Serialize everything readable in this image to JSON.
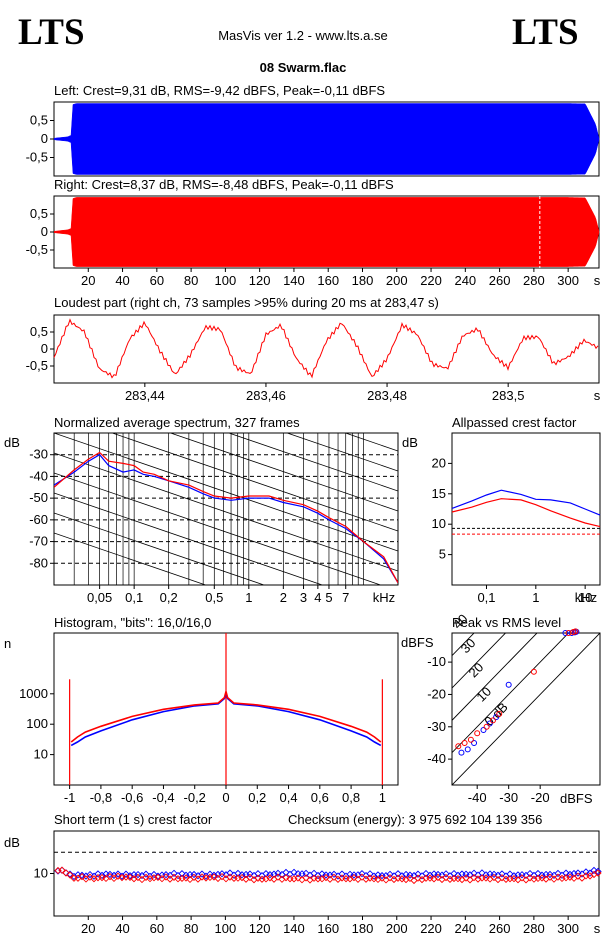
{
  "header": {
    "logo_left": "LTS",
    "logo_right": "LTS",
    "app_title": "MasVis ver 1.2 - www.lts.a.se",
    "file_name": "08 Swarm.flac"
  },
  "colors": {
    "left": "#0000ff",
    "right": "#ff0000",
    "axis": "#000000",
    "background": "#ffffff"
  },
  "chart_data": [
    {
      "id": "left-waveform",
      "type": "area",
      "title": "Left: Crest=9,31 dB, RMS=-9,42 dBFS, Peak=-0,11 dBFS",
      "y_ticks": [
        "0,5",
        "0",
        "-0,5"
      ],
      "ylim": [
        -1,
        1
      ],
      "xlim": [
        0,
        318
      ],
      "envelope_x": [
        0,
        8,
        10,
        11,
        13,
        300,
        310,
        316,
        318
      ],
      "envelope_y": [
        0.02,
        0.06,
        0.1,
        0.93,
        0.96,
        0.96,
        0.95,
        0.4,
        0.02
      ]
    },
    {
      "id": "right-waveform",
      "type": "area",
      "title": "Right: Crest=8,37 dB, RMS=-8,48 dBFS, Peak=-0,11 dBFS",
      "y_ticks": [
        "0,5",
        "0",
        "-0,5"
      ],
      "ylim": [
        -1,
        1
      ],
      "xlim": [
        0,
        318
      ],
      "marker_x": 283.47,
      "x_ticks": [
        "20",
        "40",
        "60",
        "80",
        "100",
        "120",
        "140",
        "160",
        "180",
        "200",
        "220",
        "240",
        "260",
        "280",
        "300",
        "s"
      ],
      "x_tick_values": [
        20,
        40,
        60,
        80,
        100,
        120,
        140,
        160,
        180,
        200,
        220,
        240,
        260,
        280,
        300
      ],
      "envelope_x": [
        0,
        8,
        10,
        11,
        13,
        300,
        310,
        316,
        318
      ],
      "envelope_y": [
        0.02,
        0.06,
        0.1,
        0.93,
        0.96,
        0.96,
        0.95,
        0.4,
        0.02
      ]
    },
    {
      "id": "loudest-part",
      "type": "line",
      "title": "Loudest part (right ch, 73 samples >95% during 20 ms at 283,47 s)",
      "y_ticks": [
        "0,5",
        "0",
        "-0,5"
      ],
      "ylim": [
        -1,
        1
      ],
      "xlim": [
        283.425,
        283.515
      ],
      "x_ticks": [
        "283,44",
        "283,46",
        "283,48",
        "283,5",
        "s"
      ],
      "x_tick_values": [
        283.44,
        283.46,
        283.48,
        283.5
      ],
      "x": [
        283.425,
        283.4275,
        283.43,
        283.4325,
        283.435,
        283.4375,
        283.44,
        283.4425,
        283.445,
        283.4475,
        283.45,
        283.4525,
        283.455,
        283.4575,
        283.46,
        283.4625,
        283.465,
        283.4675,
        283.47,
        283.4725,
        283.475,
        283.4775,
        283.48,
        283.4825,
        283.485,
        283.4875,
        283.49,
        283.4925,
        283.495,
        283.4975,
        283.5,
        283.5025,
        283.505,
        283.5075,
        283.51,
        283.5125,
        283.515
      ],
      "y": [
        -0.25,
        0.85,
        0.55,
        -0.55,
        -0.8,
        0.3,
        0.75,
        -0.1,
        -0.8,
        -0.2,
        0.65,
        0.6,
        -0.5,
        -0.7,
        0.45,
        0.7,
        -0.3,
        -0.85,
        0.2,
        0.75,
        0.1,
        -0.8,
        -0.25,
        0.75,
        0.45,
        -0.45,
        -0.6,
        0.35,
        0.55,
        -0.2,
        -0.55,
        0.35,
        0.4,
        -0.4,
        -0.2,
        0.25,
        0.0
      ]
    },
    {
      "id": "average-spectrum",
      "type": "line",
      "title": "Normalized average spectrum, 327 frames",
      "ylabel": "dB",
      "y_ticks": [
        "-30",
        "-40",
        "-50",
        "-60",
        "-70",
        "-80"
      ],
      "y_tick_values": [
        -30,
        -40,
        -50,
        -60,
        -70,
        -80
      ],
      "ylim": [
        -90,
        -20
      ],
      "x_scale": "log",
      "xlim": [
        0.02,
        20
      ],
      "x_ticks": [
        "0,05",
        "0,1",
        "0,2",
        "0,5",
        "1",
        "2",
        "3",
        "4",
        "5",
        "7",
        "kHz"
      ],
      "x_tick_values": [
        0.05,
        0.1,
        0.2,
        0.5,
        1,
        2,
        3,
        4,
        5,
        7
      ],
      "series": [
        {
          "x": [
            0.02,
            0.03,
            0.04,
            0.05,
            0.06,
            0.08,
            0.1,
            0.12,
            0.15,
            0.2,
            0.3,
            0.4,
            0.5,
            0.7,
            1,
            1.5,
            2,
            3,
            4,
            5,
            7,
            10,
            15,
            20
          ],
          "y": [
            -44,
            -38,
            -33,
            -30,
            -35,
            -38,
            -37,
            -39,
            -40,
            -42,
            -45,
            -48,
            -50,
            -51,
            -50,
            -50,
            -52,
            -54,
            -57,
            -60,
            -64,
            -70,
            -78,
            -89
          ]
        },
        {
          "x": [
            0.02,
            0.03,
            0.04,
            0.05,
            0.06,
            0.08,
            0.1,
            0.12,
            0.15,
            0.2,
            0.3,
            0.4,
            0.5,
            0.7,
            1,
            1.5,
            2,
            3,
            4,
            5,
            7,
            10,
            15,
            20
          ],
          "y": [
            -45,
            -37,
            -32,
            -29,
            -33,
            -34,
            -35,
            -38,
            -39,
            -42,
            -44,
            -47,
            -49,
            -50,
            -49,
            -49,
            -51,
            -53,
            -56,
            -59,
            -63,
            -70,
            -77,
            -89
          ]
        }
      ]
    },
    {
      "id": "allpassed-crest",
      "type": "line",
      "title": "Allpassed crest factor",
      "ylabel": "dB",
      "y_ticks": [
        "20",
        "15",
        "10",
        "5"
      ],
      "y_tick_values": [
        20,
        15,
        10,
        5
      ],
      "ylim": [
        0,
        25
      ],
      "x_scale": "log",
      "xlim": [
        0.02,
        20
      ],
      "x_ticks": [
        "0,1",
        "1",
        "10",
        "kHz"
      ],
      "x_tick_values": [
        0.1,
        1,
        10
      ],
      "series": [
        {
          "x": [
            0.02,
            0.05,
            0.1,
            0.2,
            0.5,
            1,
            2,
            5,
            10,
            20
          ],
          "y": [
            12.6,
            13.8,
            14.8,
            15.6,
            14.9,
            14.1,
            14.0,
            13.5,
            12.5,
            11.5
          ]
        },
        {
          "x": [
            0.02,
            0.05,
            0.1,
            0.2,
            0.5,
            1,
            2,
            5,
            10,
            20
          ],
          "y": [
            12.0,
            12.8,
            13.6,
            14.2,
            14.0,
            13.2,
            12.2,
            11.0,
            10.2,
            9.6
          ]
        }
      ],
      "ref_lines": [
        9.31,
        8.37
      ]
    },
    {
      "id": "histogram",
      "type": "line",
      "title": "Histogram, \"bits\": 16,0/16,0",
      "ylabel": "n",
      "y_scale": "log",
      "y_ticks": [
        "1000",
        "100",
        "10"
      ],
      "y_tick_values": [
        1000,
        100,
        10
      ],
      "ylim": [
        1,
        100000
      ],
      "xlim": [
        -1.1,
        1.1
      ],
      "x_ticks": [
        "-1",
        "-0,8",
        "-0,6",
        "-0,4",
        "-0,2",
        "0",
        "0,2",
        "0,4",
        "0,6",
        "0,8",
        "1"
      ],
      "x_tick_values": [
        -1,
        -0.8,
        -0.6,
        -0.4,
        -0.2,
        0,
        0.2,
        0.4,
        0.6,
        0.8,
        1
      ],
      "series": [
        {
          "x": [
            -0.99,
            -0.95,
            -0.9,
            -0.8,
            -0.6,
            -0.4,
            -0.2,
            -0.05,
            -0.01,
            0,
            0.01,
            0.05,
            0.2,
            0.4,
            0.6,
            0.8,
            0.9,
            0.95,
            0.99
          ],
          "y": [
            20,
            26,
            38,
            60,
            140,
            260,
            400,
            470,
            700,
            1000,
            700,
            470,
            400,
            260,
            140,
            60,
            38,
            26,
            20
          ]
        },
        {
          "x": [
            -0.99,
            -0.95,
            -0.9,
            -0.8,
            -0.6,
            -0.4,
            -0.2,
            -0.05,
            -0.01,
            0,
            0.01,
            0.05,
            0.2,
            0.4,
            0.6,
            0.8,
            0.9,
            0.95,
            0.99
          ],
          "y": [
            26,
            38,
            55,
            85,
            180,
            310,
            430,
            500,
            750,
            1200,
            750,
            500,
            430,
            310,
            180,
            85,
            55,
            38,
            26
          ]
        }
      ],
      "edge_spikes": [
        -1,
        0,
        1
      ]
    },
    {
      "id": "peak-vs-rms",
      "type": "scatter",
      "title": "Peak vs RMS level",
      "ylabel": "dBFS",
      "xlabel": "dBFS",
      "y_ticks": [
        "-10",
        "-20",
        "-30",
        "-40"
      ],
      "y_tick_values": [
        -10,
        -20,
        -30,
        -40
      ],
      "x_ticks": [
        "-40",
        "-30",
        "-20"
      ],
      "x_tick_values": [
        -40,
        -30,
        -20
      ],
      "xlim": [
        -48,
        -1
      ],
      "ylim": [
        -48,
        -1
      ],
      "diag_labels": [
        "40",
        "30",
        "20",
        "10",
        "0 dB"
      ],
      "diag_offsets": [
        40,
        30,
        20,
        10,
        0
      ],
      "series": [
        {
          "x": [
            -45,
            -43,
            -41,
            -38,
            -36,
            -34,
            -30,
            -12,
            -10,
            -9,
            -8.5
          ],
          "y": [
            -38,
            -37,
            -35,
            -31,
            -29,
            -27,
            -17,
            -1,
            -1,
            -0.8,
            -0.6
          ]
        },
        {
          "x": [
            -46,
            -44,
            -42,
            -40,
            -37,
            -35,
            -33,
            -22,
            -11,
            -9.5,
            -8.8
          ],
          "y": [
            -36,
            -35,
            -34,
            -32,
            -30,
            -28,
            -26,
            -13,
            -1,
            -0.7,
            -0.5
          ]
        }
      ]
    },
    {
      "id": "short-term-crest",
      "type": "scatter",
      "title": "Short term (1 s) crest factor",
      "checksum": "Checksum (energy):  3 975 692 104 139 356",
      "ylabel": "dB",
      "y_ticks": [
        "10"
      ],
      "y_tick_values": [
        10
      ],
      "ylim": [
        0,
        20
      ],
      "xlim": [
        0,
        318
      ],
      "dashed_level": 15,
      "x_ticks": [
        "20",
        "40",
        "60",
        "80",
        "100",
        "120",
        "140",
        "160",
        "180",
        "200",
        "220",
        "240",
        "260",
        "280",
        "300",
        "s"
      ],
      "x_tick_values": [
        20,
        40,
        60,
        80,
        100,
        120,
        140,
        160,
        180,
        200,
        220,
        240,
        260,
        280,
        300
      ],
      "series": [
        {
          "x": [
            1,
            4,
            7,
            10,
            14,
            20,
            30,
            40,
            50,
            60,
            70,
            80,
            90,
            100,
            110,
            120,
            130,
            140,
            150,
            160,
            170,
            180,
            190,
            200,
            210,
            220,
            230,
            240,
            250,
            260,
            270,
            280,
            290,
            300,
            310,
            316
          ],
          "y": [
            10.8,
            10.6,
            10.4,
            9.4,
            9.6,
            9.5,
            9.8,
            9.6,
            9.7,
            9.5,
            9.8,
            9.7,
            9.6,
            9.9,
            9.8,
            9.7,
            9.9,
            10.1,
            9.8,
            9.7,
            9.6,
            9.8,
            9.5,
            9.7,
            9.6,
            9.8,
            9.7,
            9.8,
            9.9,
            9.7,
            9.6,
            9.8,
            9.7,
            9.9,
            10.1,
            10.6
          ]
        },
        {
          "x": [
            2,
            5,
            8,
            11,
            15,
            20,
            30,
            40,
            50,
            60,
            70,
            80,
            90,
            100,
            110,
            120,
            130,
            140,
            150,
            160,
            170,
            180,
            190,
            200,
            210,
            220,
            230,
            240,
            250,
            260,
            270,
            280,
            290,
            300,
            310,
            317
          ],
          "y": [
            11.0,
            10.5,
            10.2,
            8.8,
            9.1,
            8.9,
            9.0,
            9.2,
            8.8,
            9.0,
            8.9,
            8.8,
            9.1,
            9.0,
            8.9,
            8.7,
            8.9,
            8.8,
            8.7,
            8.9,
            8.8,
            8.9,
            8.7,
            8.8,
            8.6,
            8.9,
            8.8,
            8.7,
            8.9,
            8.8,
            8.7,
            8.8,
            8.9,
            9.0,
            9.2,
            10.0
          ]
        }
      ]
    }
  ]
}
